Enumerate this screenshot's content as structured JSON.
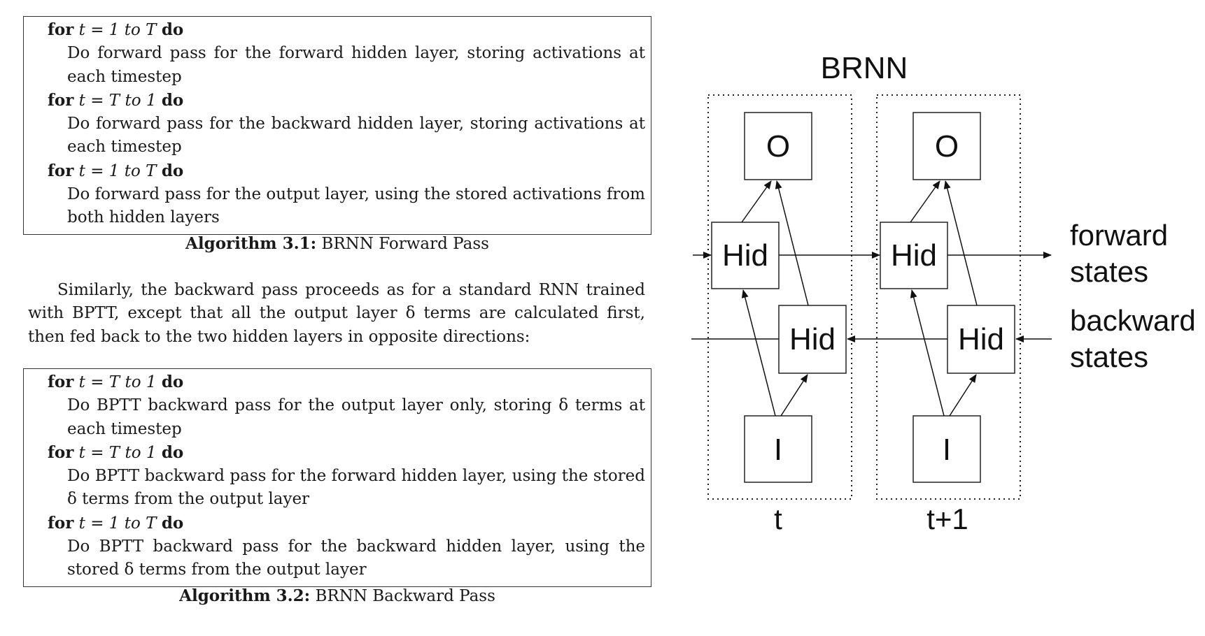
{
  "algorithm_1": {
    "lines": [
      {
        "kind": "for",
        "kw1": "for",
        "expr": "t = 1 to T",
        "kw2": "do"
      },
      {
        "kind": "body",
        "text": "Do forward pass for the forward hidden layer, storing activations at"
      },
      {
        "kind": "body",
        "text": "each timestep",
        "last": true
      },
      {
        "kind": "for",
        "kw1": "for",
        "expr": "t = T to 1",
        "kw2": "do"
      },
      {
        "kind": "body",
        "text": "Do forward pass for the backward hidden layer, storing activations at"
      },
      {
        "kind": "body",
        "text": "each timestep",
        "last": true
      },
      {
        "kind": "for",
        "kw1": "for",
        "expr": "t = 1 to T",
        "kw2": "do"
      },
      {
        "kind": "body",
        "text": "Do forward pass for the output layer, using the stored activations from"
      },
      {
        "kind": "body",
        "text": "both hidden layers",
        "last": true
      }
    ],
    "caption_label": "Algorithm 3.1:",
    "caption_text": " BRNN Forward Pass"
  },
  "paragraph": {
    "line0": "Similarly, the backward pass proceeds as for a standard RNN trained",
    "line1": "with BPTT, except that all the output layer δ terms are calculated first,",
    "line2": "then fed back to the two hidden layers in opposite directions:"
  },
  "algorithm_2": {
    "lines": [
      {
        "kind": "for",
        "kw1": "for",
        "expr": "t = T to 1",
        "kw2": "do"
      },
      {
        "kind": "body",
        "text": "Do BPTT backward pass for the output layer only, storing δ terms at"
      },
      {
        "kind": "body",
        "text": "each timestep",
        "last": true
      },
      {
        "kind": "for",
        "kw1": "for",
        "expr": "t = T to 1",
        "kw2": "do"
      },
      {
        "kind": "body",
        "text": "Do BPTT backward pass for the forward hidden layer, using the stored"
      },
      {
        "kind": "body",
        "text": "δ terms from the output layer",
        "last": true
      },
      {
        "kind": "for",
        "kw1": "for",
        "expr": "t = 1 to T",
        "kw2": "do"
      },
      {
        "kind": "body",
        "text": "Do BPTT backward pass for the backward hidden layer, using the"
      },
      {
        "kind": "body",
        "text": "stored δ terms from the output layer",
        "last": true
      }
    ],
    "caption_label": "Algorithm 3.2:",
    "caption_text": " BRNN Backward Pass"
  },
  "diagram": {
    "title": "BRNN",
    "columns": [
      {
        "time_label": "t",
        "output": "O",
        "forward_hidden": "Hid",
        "backward_hidden": "Hid",
        "input": "I"
      },
      {
        "time_label": "t+1",
        "output": "O",
        "forward_hidden": "Hid",
        "backward_hidden": "Hid",
        "input": "I"
      }
    ],
    "forward_label_1": "forward",
    "forward_label_2": "states",
    "backward_label_1": "backward",
    "backward_label_2": "states"
  }
}
